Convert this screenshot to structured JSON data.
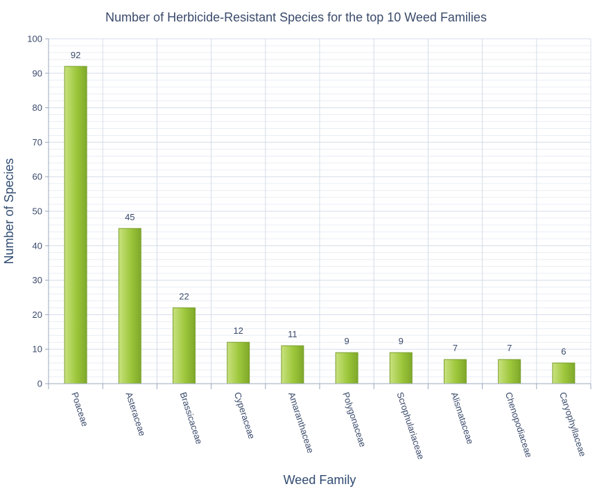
{
  "chart_data": {
    "type": "bar",
    "title": "Number of Herbicide-Resistant Species for the top 10 Weed Families",
    "xlabel": "Weed Family",
    "ylabel": "Number of Species",
    "categories": [
      "Poaceae",
      "Asteraceae",
      "Brassicaceae",
      "Cyperaceae",
      "Amaranthaceae",
      "Polygonaceae",
      "Scrophulariaceae",
      "Alismataceae",
      "Chenopodiaceae",
      "Caryophyllaceae"
    ],
    "values": [
      92,
      45,
      22,
      12,
      11,
      9,
      9,
      7,
      7,
      6
    ],
    "ylim": [
      0,
      100
    ],
    "yticks": [
      0,
      10,
      20,
      30,
      40,
      50,
      60,
      70,
      80,
      90,
      100
    ],
    "grid": true,
    "legend": "none",
    "colors": {
      "bar_light": "#c9e27f",
      "bar_mid": "#9cc63a",
      "bar_dark": "#7ea82a",
      "bar_stroke": "#7a9e2e",
      "grid_major": "#d4dce8",
      "grid_minor": "#e9edf3",
      "axis": "#9aa8bd",
      "text": "#3a4a6b"
    }
  }
}
